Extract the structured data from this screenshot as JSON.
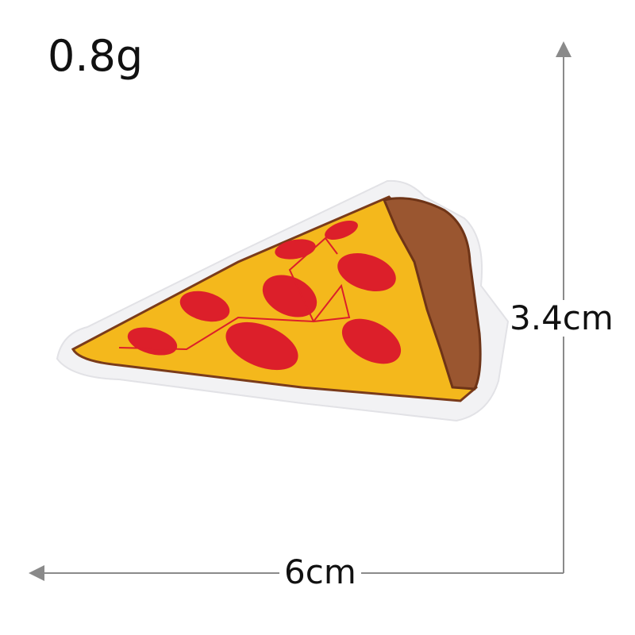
{
  "weight_label": "0.8g",
  "height_label": "3.4cm",
  "width_label": "6cm",
  "colors": {
    "felt": "#f2f2f4",
    "cheese": "#f4b81c",
    "crust": "#9a5630",
    "pepperoni": "#dc1f2a",
    "outline": "#7a3b1a",
    "dimension_line": "#8a8a8a"
  }
}
